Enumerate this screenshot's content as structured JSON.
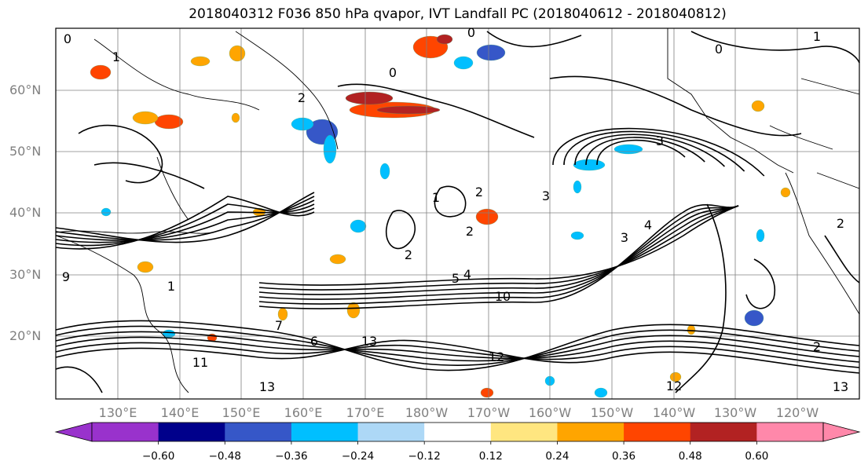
{
  "title": "2018040312 F036 850 hPa qvapor, IVT Landfall PC (2018040612 - 2018040812)",
  "map": {
    "region": "North Pacific",
    "lat_labels": [
      "60°N",
      "50°N",
      "40°N",
      "30°N",
      "20°N"
    ],
    "lon_labels": [
      "130°E",
      "140°E",
      "150°E",
      "160°E",
      "170°E",
      "180°W",
      "170°W",
      "160°W",
      "150°W",
      "140°W",
      "130°W",
      "120°W"
    ],
    "contour_labels": [
      "0",
      "1",
      "2",
      "3",
      "4",
      "5",
      "6",
      "7",
      "9",
      "10",
      "11",
      "12",
      "13"
    ],
    "contour_color": "#000000",
    "gridline_color": "#808080"
  },
  "colorbar": {
    "ticks": [
      "−0.60",
      "−0.48",
      "−0.36",
      "−0.24",
      "−0.12",
      "0.12",
      "0.24",
      "0.36",
      "0.48",
      "0.60"
    ],
    "colors": [
      "#9932cc",
      "#00008b",
      "#3657c8",
      "#00bfff",
      "#add8f6",
      "#ffffff",
      "#ffe680",
      "#ffa500",
      "#ff4500",
      "#b22222",
      "#ff88aa"
    ],
    "extend": "both"
  }
}
